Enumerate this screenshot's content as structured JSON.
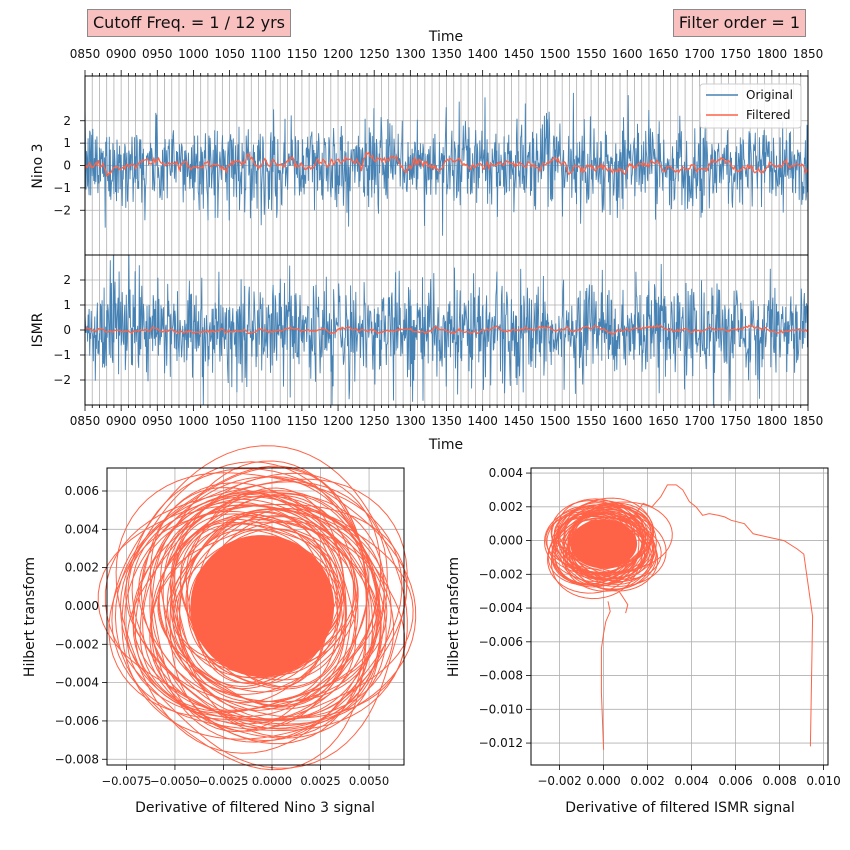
{
  "badges": {
    "cutoff": "Cutoff Freq. = 1 / 12 yrs",
    "order": "Filter order = 1"
  },
  "colors": {
    "original": "#4682b4",
    "filtered": "#ff6347",
    "badge_fill": "#f9c0c0",
    "grid": "#b0b0b0"
  },
  "chart_data": [
    {
      "type": "line",
      "name": "nino3-timeseries",
      "xlabel": "Time",
      "ylabel": "Nino 3",
      "xlim": [
        850,
        1850
      ],
      "ylim": [
        -4,
        4
      ],
      "x_ticks": [
        "0850",
        "0900",
        "0950",
        "1000",
        "1050",
        "1100",
        "1150",
        "1200",
        "1250",
        "1300",
        "1350",
        "1400",
        "1450",
        "1500",
        "1550",
        "1600",
        "1650",
        "1700",
        "1750",
        "1800",
        "1850"
      ],
      "y_ticks": [
        2,
        1,
        0,
        -1,
        -2
      ],
      "y_tick_labels": [
        "2",
        "1",
        "0",
        "−1",
        "−2"
      ],
      "legend": {
        "position": "top-right",
        "entries": [
          "Original",
          "Filtered"
        ]
      },
      "series": [
        {
          "name": "Original",
          "role": "original",
          "summary": "noisy monthly signal, amplitude about ±2.5, extremes near ±4"
        },
        {
          "name": "Filtered",
          "role": "filtered",
          "summary": "smoothed signal oscillating about ±0.5 around 0"
        }
      ]
    },
    {
      "type": "line",
      "name": "ismr-timeseries",
      "xlabel": "Time",
      "ylabel": "ISMR",
      "xlim": [
        850,
        1850
      ],
      "ylim": [
        -3,
        3
      ],
      "x_ticks": [
        "0850",
        "0900",
        "0950",
        "1000",
        "1050",
        "1100",
        "1150",
        "1200",
        "1250",
        "1300",
        "1350",
        "1400",
        "1450",
        "1500",
        "1550",
        "1600",
        "1650",
        "1700",
        "1750",
        "1800",
        "1850"
      ],
      "y_ticks": [
        2,
        1,
        0,
        -1,
        -2
      ],
      "y_tick_labels": [
        "2",
        "1",
        "0",
        "−1",
        "−2"
      ],
      "series": [
        {
          "name": "Original",
          "role": "original",
          "summary": "dense noisy signal filling about ±2, extremes near ±3"
        },
        {
          "name": "Filtered",
          "role": "filtered",
          "summary": "nearly flat smoothed signal about ±0.15 around 0"
        }
      ]
    },
    {
      "type": "scatter",
      "name": "nino3-phase",
      "xlabel": "Derivative of filtered Nino 3 signal",
      "ylabel": "Hilbert transform",
      "xlim": [
        -0.0085,
        0.0068
      ],
      "ylim": [
        -0.0083,
        0.0072
      ],
      "x_ticks": [
        -0.0075,
        -0.005,
        -0.0025,
        0.0,
        0.0025,
        0.005
      ],
      "x_tick_labels": [
        "−0.0075",
        "−0.0050",
        "−0.0025",
        "0.0000",
        "0.0025",
        "0.0050"
      ],
      "y_ticks": [
        0.006,
        0.004,
        0.002,
        0.0,
        -0.002,
        -0.004,
        -0.006,
        -0.008
      ],
      "y_tick_labels": [
        "0.006",
        "0.004",
        "0.002",
        "0.000",
        "−0.002",
        "−0.004",
        "−0.006",
        "−0.008"
      ],
      "center": [
        -0.0005,
        0.0
      ],
      "summary": "concentric orbits, dense core radius ~0.004, outer loops reaching ~0.0075"
    },
    {
      "type": "scatter",
      "name": "ismr-phase",
      "xlabel": "Derivative of filtered ISMR signal",
      "ylabel": "Hilbert transform",
      "xlim": [
        -0.0033,
        0.0102
      ],
      "ylim": [
        -0.0133,
        0.0043
      ],
      "x_ticks": [
        -0.002,
        0.0,
        0.002,
        0.004,
        0.006,
        0.008,
        0.01
      ],
      "x_tick_labels": [
        "−0.002",
        "0.000",
        "0.002",
        "0.004",
        "0.006",
        "0.008",
        "0.010"
      ],
      "y_ticks": [
        0.004,
        0.002,
        0.0,
        -0.002,
        -0.004,
        -0.006,
        -0.008,
        -0.01,
        -0.012
      ],
      "y_tick_labels": [
        "0.004",
        "0.002",
        "0.000",
        "−0.002",
        "−0.004",
        "−0.006",
        "−0.008",
        "−0.010",
        "−0.012"
      ],
      "center": [
        0.0,
        -0.0002
      ],
      "path": [
        [
          0.0094,
          -0.0122
        ],
        [
          0.0095,
          -0.0045
        ],
        [
          0.0091,
          -0.0008
        ],
        [
          0.0088,
          -0.0005
        ],
        [
          0.0082,
          0.0
        ],
        [
          0.0075,
          0.0002
        ],
        [
          0.0068,
          0.0004
        ],
        [
          0.0064,
          0.001
        ],
        [
          0.0058,
          0.0012
        ],
        [
          0.0055,
          0.0014
        ],
        [
          0.0052,
          0.0015
        ],
        [
          0.0048,
          0.0016
        ],
        [
          0.0045,
          0.0015
        ],
        [
          0.0042,
          0.002
        ],
        [
          0.0039,
          0.0023
        ],
        [
          0.0036,
          0.003
        ],
        [
          0.0033,
          0.0033
        ],
        [
          0.0029,
          0.0033
        ],
        [
          0.0026,
          0.0026
        ],
        [
          0.0022,
          0.002
        ],
        [
          0.0018,
          0.0022
        ],
        [
          0.0014,
          0.0015
        ],
        [
          0.001,
          0.0012
        ],
        [
          0.0004,
          0.0008
        ],
        [
          -0.0004,
          0.0004
        ]
      ],
      "tails": [
        [
          [
            0.0,
            -0.0124
          ],
          [
            -0.0001,
            -0.009
          ],
          [
            -0.0001,
            -0.0064
          ],
          [
            0.0,
            -0.0055
          ],
          [
            0.0001,
            -0.0048
          ],
          [
            0.0003,
            -0.0042
          ],
          [
            0.0002,
            -0.0036
          ]
        ],
        [
          [
            0.001,
            -0.0043
          ],
          [
            0.0011,
            -0.0038
          ],
          [
            0.0009,
            -0.0034
          ],
          [
            0.0007,
            -0.003
          ]
        ]
      ],
      "summary": "dense orbit cluster around the origin with a trajectory arriving from the upper right and a tail descending to about -0.0124"
    }
  ]
}
